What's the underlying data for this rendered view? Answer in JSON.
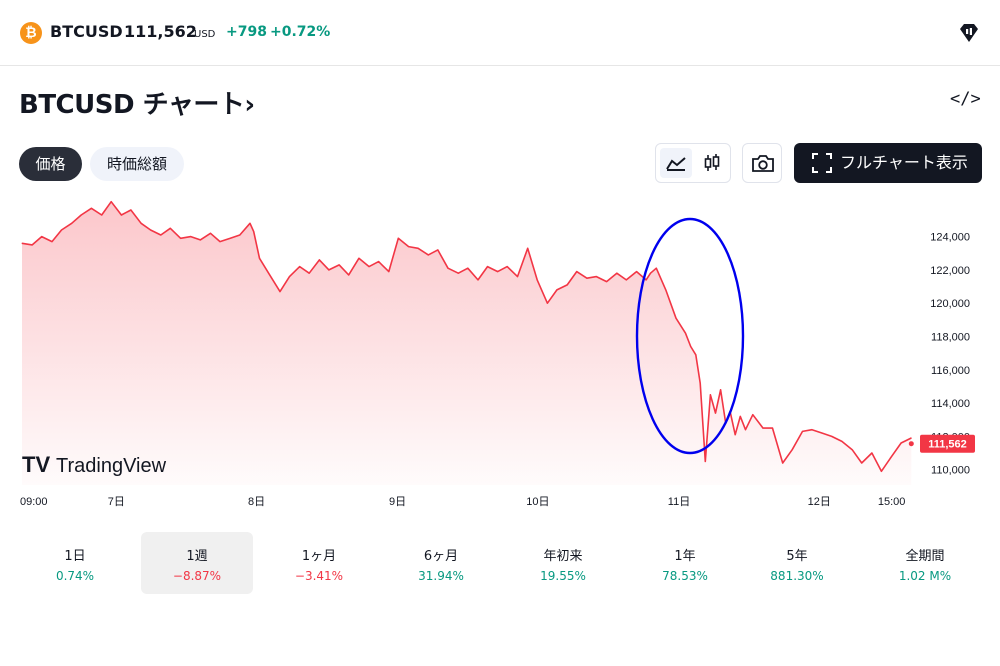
{
  "header": {
    "coin_icon": "bitcoin-icon",
    "symbol": "BTCUSD",
    "price": "111,562",
    "currency": "USD",
    "change": "+798",
    "change_pct": "+0.72%",
    "change_color": "#089981",
    "logo_icon": "tradingview-diamond-icon"
  },
  "title": "BTCUSD チャート›",
  "tabs": [
    {
      "label": "価格",
      "active": true
    },
    {
      "label": "時価総額",
      "active": false
    }
  ],
  "toolbar": {
    "area_icon": "area-chart-icon",
    "candle_icon": "candlestick-icon",
    "camera_icon": "camera-icon",
    "fullscreen_label": "フルチャート表示",
    "fullscreen_icon": "fullscreen-icon",
    "embed_icon": "code-embed-icon"
  },
  "watermark": "TradingView",
  "chart_data": {
    "type": "area",
    "line_color": "#f23645",
    "ylim": [
      109500,
      126500
    ],
    "y_ticks": [
      110000,
      112000,
      114000,
      116000,
      118000,
      120000,
      122000,
      124000
    ],
    "y_tick_labels": [
      "110,000",
      "112,000",
      "114,000",
      "116,000",
      "118,000",
      "120,000",
      "122,000",
      "124,000"
    ],
    "x_labels": [
      "09:00",
      "7日",
      "8日",
      "9日",
      "10日",
      "11日",
      "12日",
      "15:00"
    ],
    "x_label_pos": [
      0,
      12.9,
      32.1,
      51.4,
      70.6,
      89.9,
      109.1,
      119.0
    ],
    "x_range": [
      0,
      122.2
    ],
    "last_value_label": "111,562",
    "last_value": 111562,
    "annotation": "blue ellipse around sharp drop",
    "series": [
      {
        "x": [
          0,
          1.4,
          2.7,
          4.1,
          5.4,
          6.8,
          8.1,
          9.5,
          10.9,
          12.2,
          13.6,
          14.9,
          16.3,
          17.6,
          19.0,
          20.3,
          21.7,
          23.1,
          24.4,
          25.8,
          27.1,
          28.5,
          29.8,
          31.2,
          31.7,
          32.5,
          33.9,
          35.3,
          36.6,
          38.0,
          39.3,
          40.7,
          42.0,
          43.4,
          44.7,
          46.1,
          47.5,
          48.8,
          50.2,
          51.5,
          52.9,
          54.2,
          55.6,
          56.9,
          58.3,
          59.7,
          61.0,
          62.4,
          63.7,
          65.1,
          66.4,
          67.8,
          69.2,
          70.5,
          71.9,
          73.2,
          74.6,
          75.9,
          77.3,
          78.6,
          80.0,
          81.4,
          82.7,
          84.1,
          85.4,
          86.0,
          86.8,
          88.1,
          89.5,
          90.8,
          91.5,
          92.2,
          92.8,
          93.5,
          94.2,
          94.9,
          95.6,
          96.3,
          96.9,
          97.6,
          98.3,
          99.0,
          100.0,
          101.4,
          102.7,
          104.1,
          105.4,
          106.8,
          108.1,
          109.5,
          110.8,
          112.2,
          113.6,
          114.9,
          116.3,
          117.6,
          119.0,
          120.3,
          121.7
        ],
        "y": [
          123600,
          123500,
          124000,
          123700,
          124400,
          124800,
          125300,
          125700,
          125300,
          126100,
          125300,
          125600,
          124800,
          124400,
          124100,
          124500,
          123900,
          124000,
          123800,
          124200,
          123700,
          123900,
          124100,
          124800,
          124300,
          122700,
          121700,
          120700,
          121600,
          122200,
          121800,
          122600,
          122000,
          122300,
          121700,
          122700,
          122200,
          122500,
          121900,
          123900,
          123400,
          123300,
          122900,
          123200,
          122100,
          121800,
          122100,
          121400,
          122200,
          121900,
          122200,
          121600,
          123300,
          121400,
          120000,
          120800,
          121100,
          121900,
          121500,
          121600,
          121300,
          121800,
          121400,
          121900,
          121400,
          121800,
          122100,
          120800,
          119100,
          118200,
          117400,
          116900,
          115200,
          110500,
          114500,
          113400,
          114800,
          112800,
          113500,
          112100,
          113200,
          112400,
          113300,
          112500,
          112500,
          110400,
          111200,
          112300,
          112400,
          112200,
          112000,
          111700,
          111200,
          110400,
          111000,
          109900,
          110800,
          111600,
          111900
        ]
      }
    ]
  },
  "periods": [
    {
      "label": "1日",
      "value": "0.74%",
      "sign": "pos",
      "active": false
    },
    {
      "label": "1週",
      "value": "−8.87%",
      "sign": "neg",
      "active": true
    },
    {
      "label": "1ヶ月",
      "value": "−3.41%",
      "sign": "neg",
      "active": false
    },
    {
      "label": "6ヶ月",
      "value": "31.94%",
      "sign": "pos",
      "active": false
    },
    {
      "label": "年初来",
      "value": "19.55%",
      "sign": "pos",
      "active": false
    },
    {
      "label": "1年",
      "value": "78.53%",
      "sign": "pos",
      "active": false
    },
    {
      "label": "5年",
      "value": "881.30%",
      "sign": "pos",
      "active": false
    },
    {
      "label": "全期間",
      "value": "1.02 M%",
      "sign": "pos",
      "active": false
    }
  ]
}
